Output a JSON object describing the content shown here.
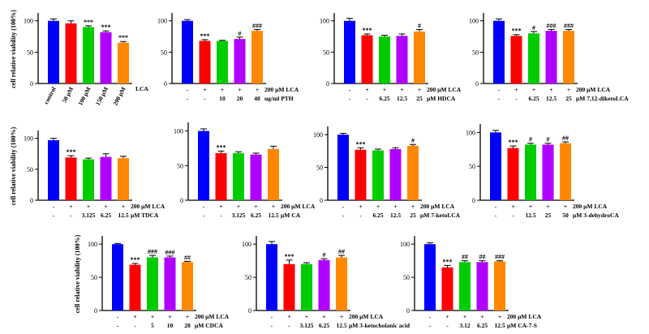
{
  "colors": [
    "#0000ff",
    "#ff0000",
    "#00cc00",
    "#b000ff",
    "#ff8800"
  ],
  "ylabel": "cell relative viability (100%)",
  "yticks": [
    0,
    50,
    100
  ],
  "chart_data": [
    {
      "type": "bar",
      "ylim": [
        0,
        110
      ],
      "categories": [
        "control",
        "50 μM",
        "100 μM",
        "150 μM",
        "200 μM"
      ],
      "values": [
        100,
        96,
        90,
        82,
        65
      ],
      "errors": [
        3,
        4,
        2,
        2,
        2
      ],
      "sig": [
        "",
        "",
        "***",
        "***",
        "***"
      ],
      "row1": [],
      "row2": [],
      "tail1": "LCA",
      "tail2": ""
    },
    {
      "type": "bar",
      "ylim": [
        0,
        110
      ],
      "row1": [
        "-",
        "+",
        "+",
        "+",
        "+"
      ],
      "row2": [
        "-",
        "-",
        "10",
        "20",
        "40"
      ],
      "values": [
        100,
        68,
        68,
        71,
        84
      ],
      "errors": [
        2,
        2,
        1,
        3,
        2
      ],
      "sig": [
        "",
        "***",
        "",
        "#",
        "###"
      ],
      "tail1": "200 μM LCA",
      "tail2": "ug/ml PTH"
    },
    {
      "type": "bar",
      "ylim": [
        0,
        110
      ],
      "row1": [
        "-",
        "+",
        "+",
        "+",
        "+"
      ],
      "row2": [
        "-",
        "-",
        "6.25",
        "12.5",
        "25"
      ],
      "values": [
        100,
        77,
        75,
        76,
        83
      ],
      "errors": [
        4,
        2,
        2,
        3,
        3
      ],
      "sig": [
        "",
        "***",
        "",
        "",
        "#"
      ],
      "tail1": "200 μM LCA",
      "tail2": "μM HDCA"
    },
    {
      "type": "bar",
      "ylim": [
        0,
        110
      ],
      "row1": [
        "-",
        "+",
        "+",
        "+",
        "+"
      ],
      "row2": [
        "-",
        "-",
        "6.25",
        "12.5",
        "25"
      ],
      "values": [
        100,
        76,
        80,
        84,
        84
      ],
      "errors": [
        3,
        2,
        3,
        2,
        2
      ],
      "sig": [
        "",
        "***",
        "#",
        "###",
        "###"
      ],
      "tail1": "200 μM LCA",
      "tail2": "μM 7,12-diketoLCA"
    },
    {
      "type": "bar",
      "ylim": [
        0,
        110
      ],
      "row1": [
        "-",
        "+",
        "+",
        "+",
        "+"
      ],
      "row2": [
        "-",
        "-",
        "3.125",
        "6.25",
        "12.5"
      ],
      "values": [
        97,
        69,
        66,
        70,
        68
      ],
      "errors": [
        3,
        3,
        2,
        5,
        3
      ],
      "sig": [
        "",
        "***",
        "",
        "",
        ""
      ],
      "tail1": "200 μM LCA",
      "tail2": "μM TDCA"
    },
    {
      "type": "bar",
      "ylim": [
        0,
        110
      ],
      "row1": [
        "-",
        "+",
        "+",
        "+",
        "+"
      ],
      "row2": [
        "-",
        "-",
        "3.125",
        "6.25",
        "12.5"
      ],
      "values": [
        100,
        68,
        68,
        66,
        74
      ],
      "errors": [
        3,
        3,
        2,
        2,
        4
      ],
      "sig": [
        "",
        "***",
        "",
        "",
        ""
      ],
      "tail1": "200 μM LCA",
      "tail2": "μM CA"
    },
    {
      "type": "bar",
      "ylim": [
        0,
        110
      ],
      "row1": [
        "-",
        "+",
        "+",
        "+",
        "+"
      ],
      "row2": [
        "-",
        "-",
        "6.25",
        "12.5",
        "25"
      ],
      "values": [
        100,
        77,
        76,
        78,
        83
      ],
      "errors": [
        2,
        3,
        2,
        2,
        2
      ],
      "sig": [
        "",
        "***",
        "",
        "",
        "#"
      ],
      "tail1": "200 μM LCA",
      "tail2": "μM 7-ketoLCA"
    },
    {
      "type": "bar",
      "ylim": [
        0,
        110
      ],
      "row1": [
        "-",
        "+",
        "+",
        "+",
        "+"
      ],
      "row2": [
        "-",
        "-",
        "12.5",
        "25",
        "50"
      ],
      "values": [
        100,
        77,
        82,
        82,
        84
      ],
      "errors": [
        3,
        3,
        2,
        2,
        2
      ],
      "sig": [
        "",
        "***",
        "#",
        "#",
        "##"
      ],
      "tail1": "200 μM LCA",
      "tail2": "μM 3-dehydroCA"
    },
    {
      "type": "bar",
      "ylim": [
        0,
        110
      ],
      "row1": [
        "-",
        "+",
        "+",
        "+",
        "+"
      ],
      "row2": [
        "-",
        "-",
        "5",
        "10",
        "20"
      ],
      "values": [
        100,
        69,
        80,
        80,
        73
      ],
      "errors": [
        1,
        2,
        3,
        2,
        1
      ],
      "sig": [
        "",
        "***",
        "###",
        "###",
        "##"
      ],
      "tail1": "200 μM LCA",
      "tail2": "μM CDCA"
    },
    {
      "type": "bar",
      "ylim": [
        0,
        110
      ],
      "row1": [
        "-",
        "+",
        "+",
        "+",
        "+"
      ],
      "row2": [
        "-",
        "-",
        "3.125",
        "6.25",
        "12.5"
      ],
      "values": [
        100,
        70,
        70,
        76,
        80
      ],
      "errors": [
        4,
        6,
        2,
        2,
        3
      ],
      "sig": [
        "",
        "***",
        "",
        "#",
        "##"
      ],
      "tail1": "200 μM LCA",
      "tail2": "μM 3-ketocholanic acid"
    },
    {
      "type": "bar",
      "ylim": [
        0,
        110
      ],
      "row1": [
        "-",
        "+",
        "+",
        "+",
        "+"
      ],
      "row2": [
        "-",
        "-",
        "3.12",
        "6.25",
        "12.5"
      ],
      "values": [
        100,
        65,
        73,
        73,
        74
      ],
      "errors": [
        2,
        3,
        2,
        2,
        1
      ],
      "sig": [
        "",
        "***",
        "##",
        "##",
        "###"
      ],
      "tail1": "200 μM LCA",
      "tail2": "μM CA-7-S"
    }
  ]
}
